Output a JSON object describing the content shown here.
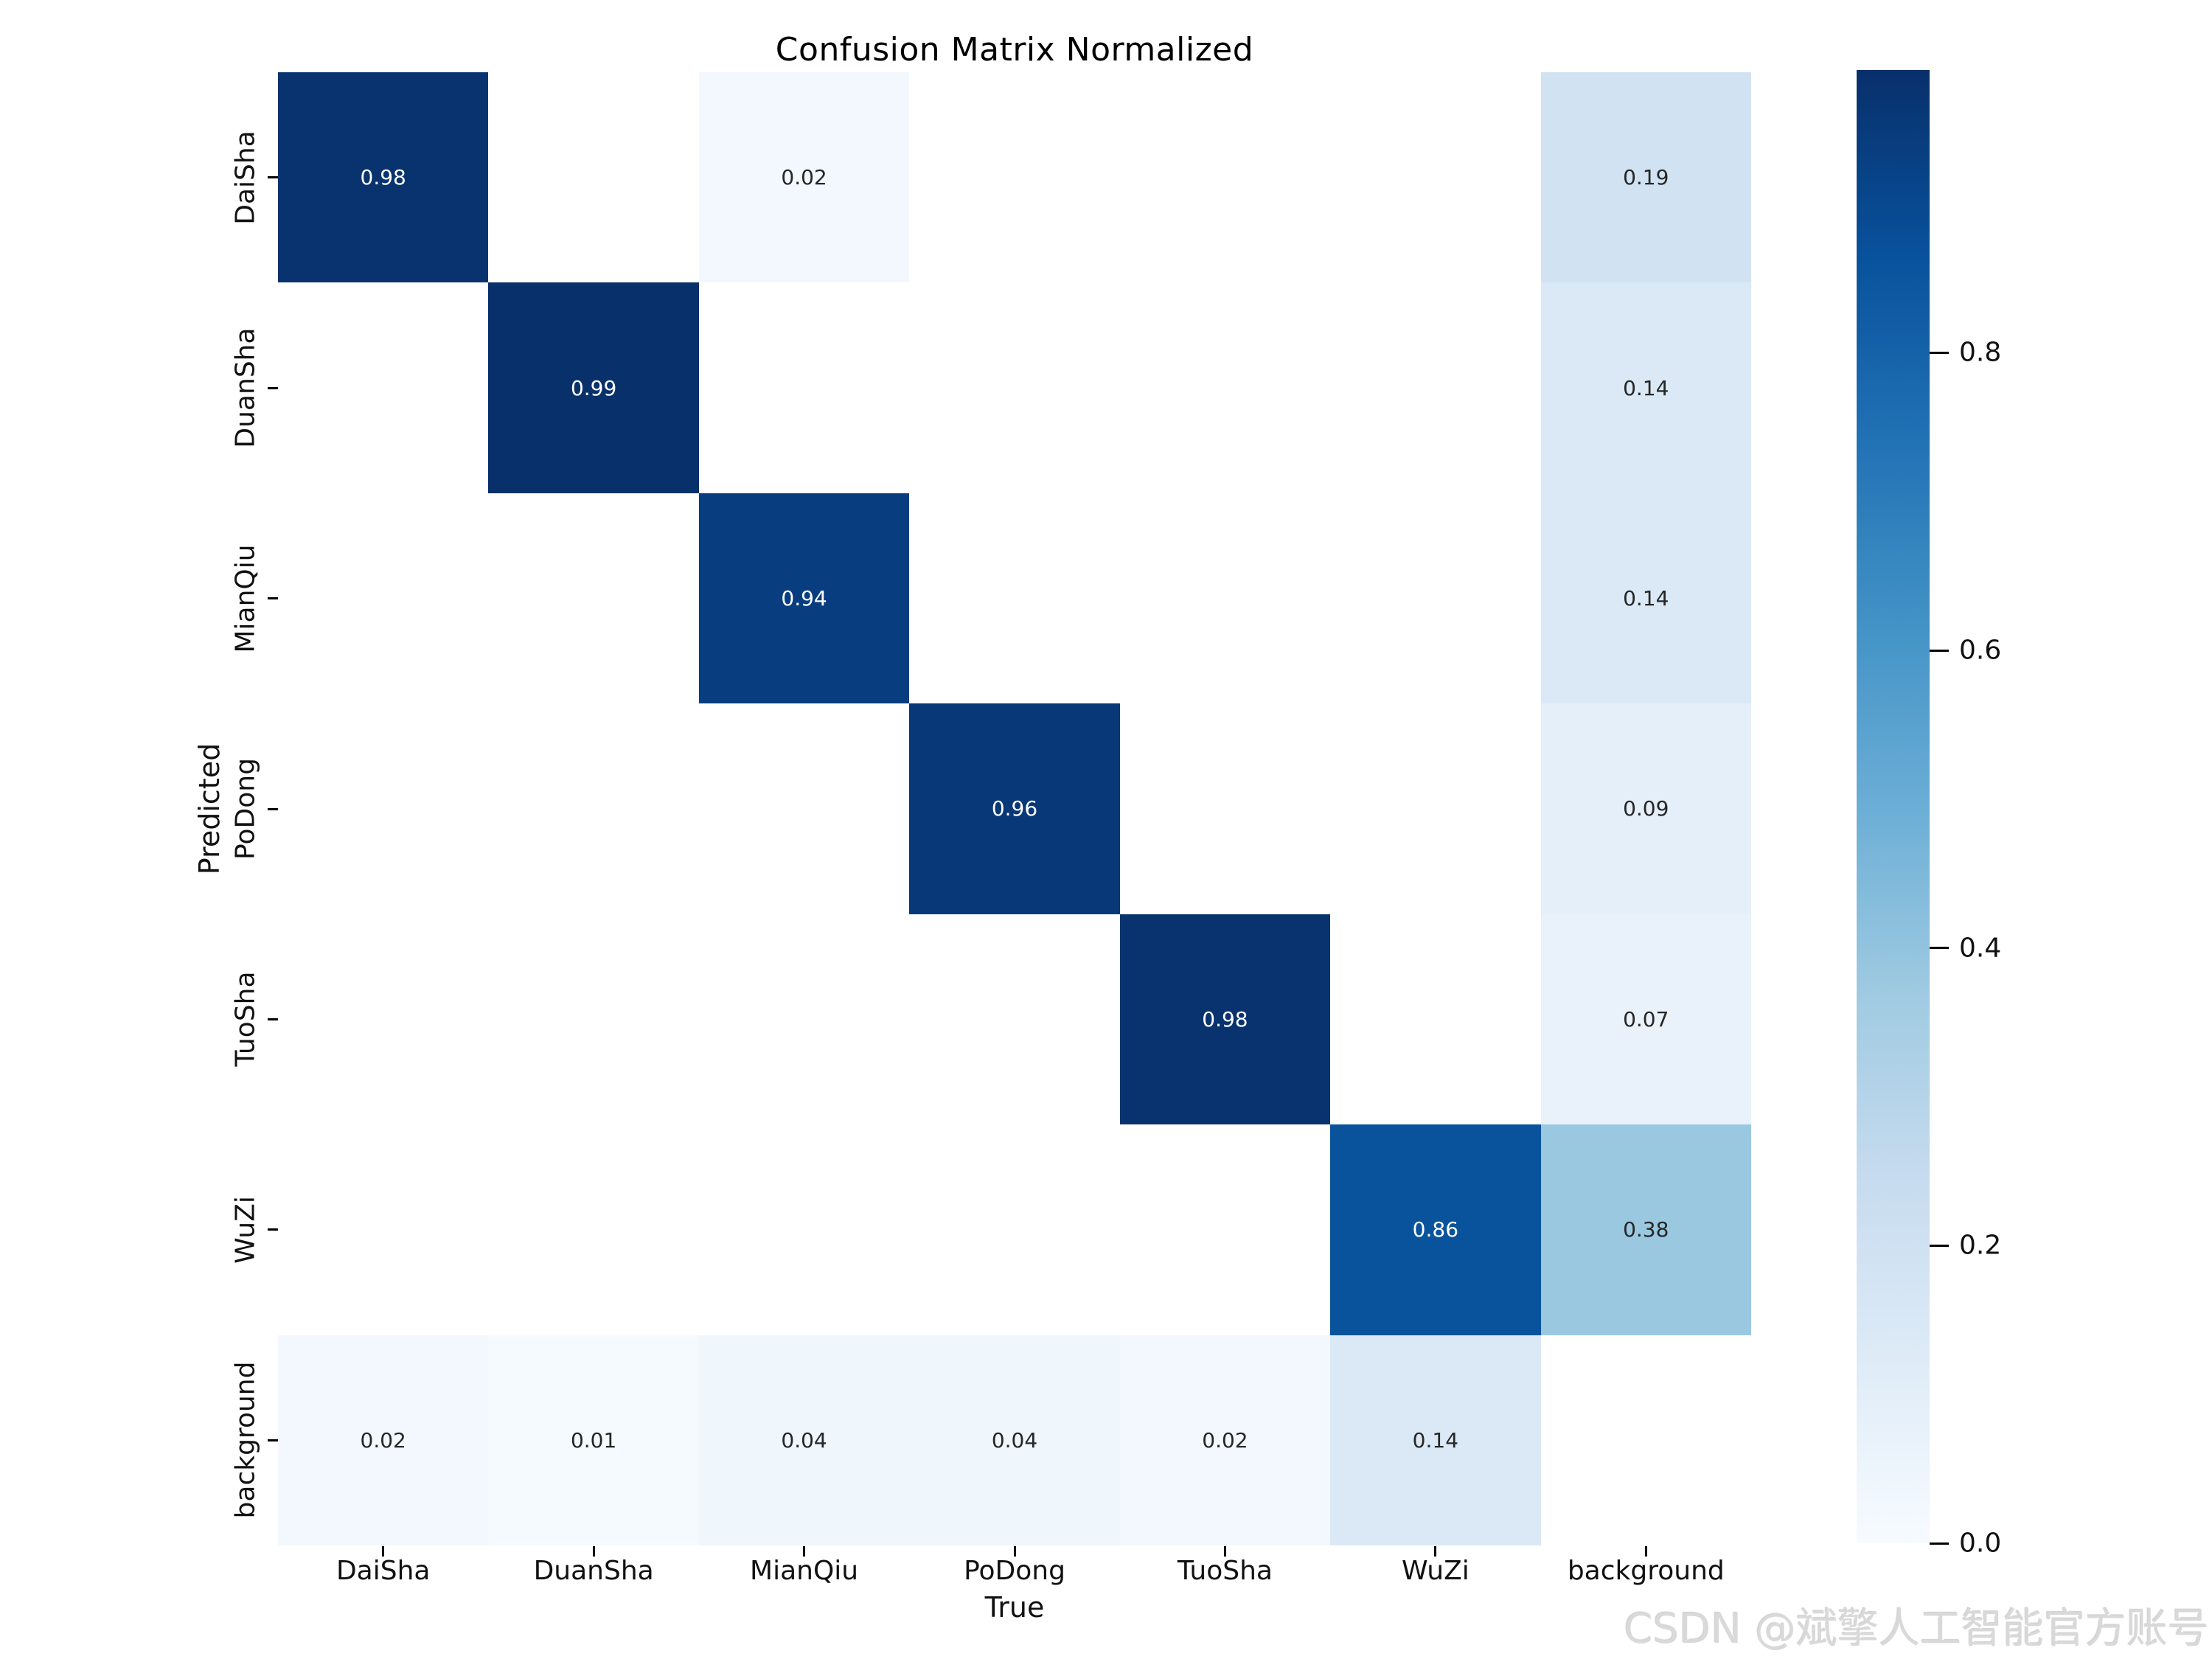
{
  "chart_data": {
    "type": "heatmap",
    "title": "Confusion Matrix Normalized",
    "xlabel": "True",
    "ylabel": "Predicted",
    "x_categories": [
      "DaiSha",
      "DuanSha",
      "MianQiu",
      "PoDong",
      "TuoSha",
      "WuZi",
      "background"
    ],
    "y_categories": [
      "DaiSha",
      "DuanSha",
      "MianQiu",
      "PoDong",
      "TuoSha",
      "WuZi",
      "background"
    ],
    "matrix": [
      [
        0.98,
        null,
        0.02,
        null,
        null,
        null,
        0.19
      ],
      [
        null,
        0.99,
        null,
        null,
        null,
        null,
        0.14
      ],
      [
        null,
        null,
        0.94,
        null,
        null,
        null,
        0.14
      ],
      [
        null,
        null,
        null,
        0.96,
        null,
        null,
        0.09
      ],
      [
        null,
        null,
        null,
        null,
        0.98,
        null,
        0.07
      ],
      [
        null,
        null,
        null,
        null,
        null,
        0.86,
        0.38
      ],
      [
        0.02,
        0.01,
        0.04,
        0.04,
        0.02,
        0.14,
        null
      ]
    ],
    "value_decimals": 2,
    "vmin": 0.0,
    "vmax": 0.99,
    "colormap": "Blues",
    "colorbar_ticks": [
      {
        "label": "0.8",
        "value": 0.8
      },
      {
        "label": "0.6",
        "value": 0.6
      },
      {
        "label": "0.4",
        "value": 0.4
      },
      {
        "label": "0.2",
        "value": 0.2
      },
      {
        "label": "0.0",
        "value": 0.0
      }
    ],
    "legend_position": "right",
    "grid": false
  },
  "watermark": {
    "text": "CSDN @斌擎人工智能官方账号"
  },
  "colors": {
    "blues_anchors": [
      "#f7fbff",
      "#deebf7",
      "#c6dbef",
      "#9ecae1",
      "#6baed6",
      "#4292c6",
      "#2171b5",
      "#08519c",
      "#08306b"
    ],
    "empty_cell": "#ffffff",
    "annot_dark_text": "#262626",
    "annot_light_text": "#ffffff",
    "axis_text": "#111111",
    "watermark_text": "#d9d9d9"
  }
}
